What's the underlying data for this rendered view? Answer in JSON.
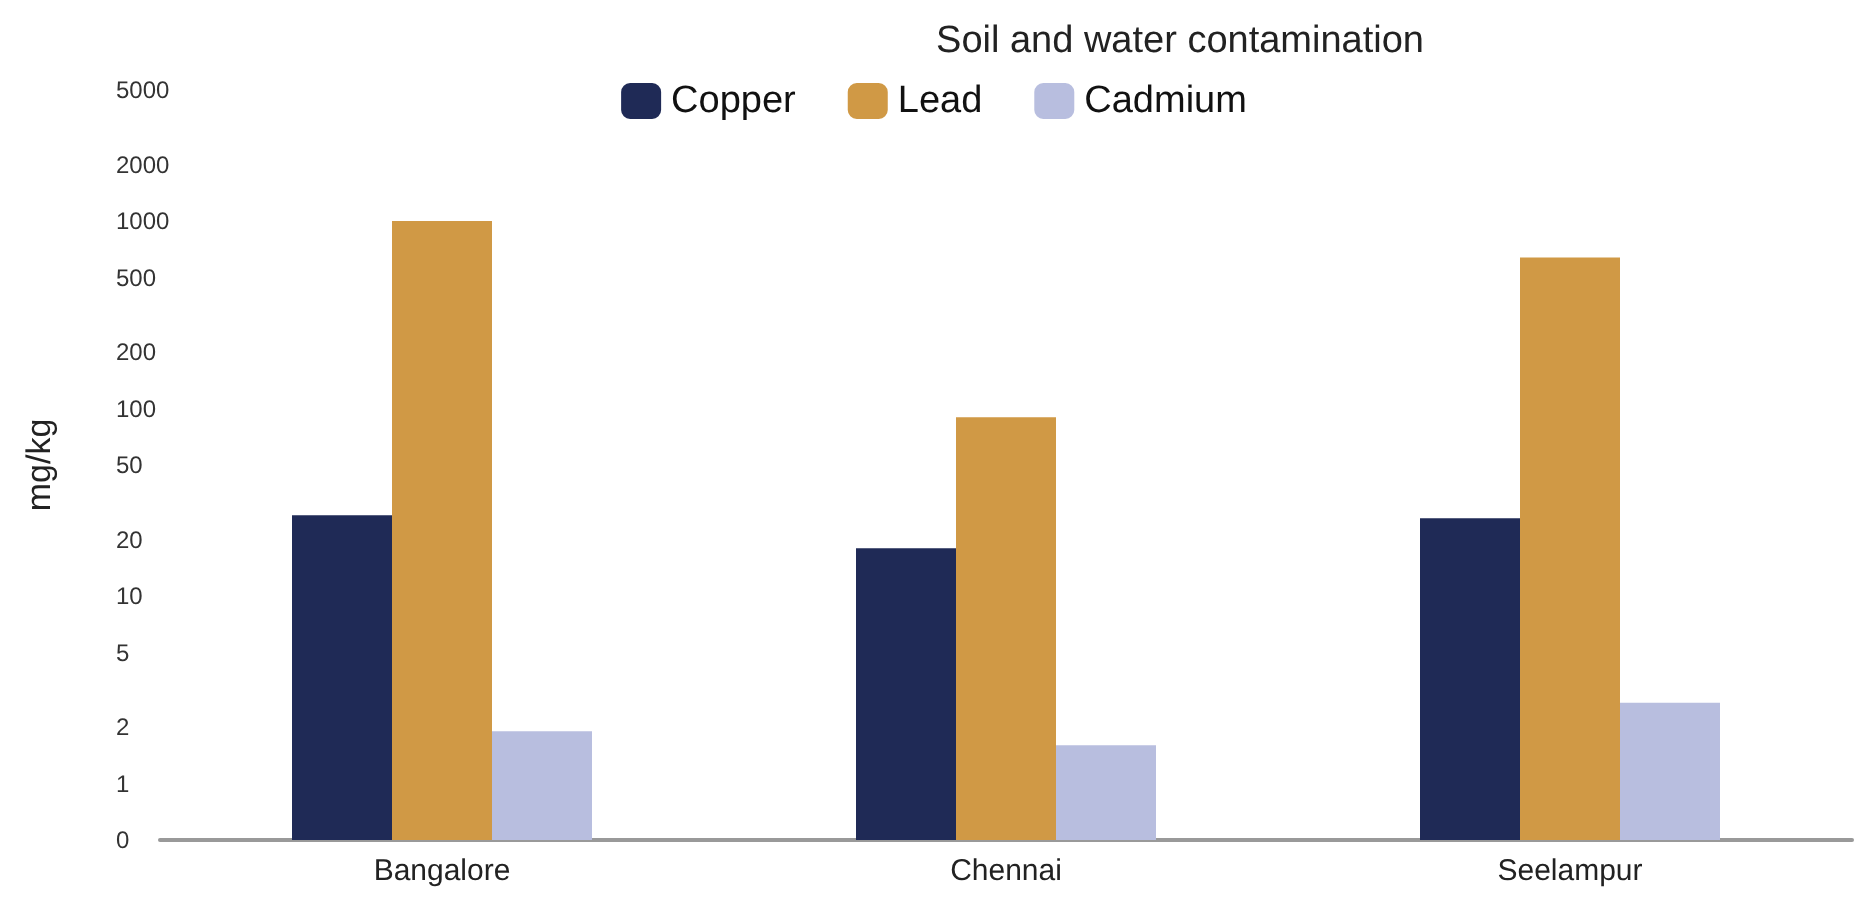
{
  "chart_data": {
    "type": "bar",
    "title": "Soil and water contamination",
    "ylabel": "mg/kg",
    "categories": [
      "Bangalore",
      "Chennai",
      "Seelampur"
    ],
    "series": [
      {
        "name": "Copper",
        "color": "#1f2a56",
        "values": [
          27,
          18,
          26
        ]
      },
      {
        "name": "Lead",
        "color": "#d09945",
        "values": [
          1000,
          90,
          640
        ]
      },
      {
        "name": "Cadmium",
        "color": "#b8bedf",
        "values": [
          1.9,
          1.6,
          2.7
        ]
      }
    ],
    "log": true,
    "ylim": [
      0.5,
      5000
    ],
    "yticks": [
      {
        "value": 0.5,
        "label": "0"
      },
      1,
      2,
      5,
      10,
      20,
      50,
      100,
      200,
      500,
      1000,
      2000,
      5000
    ],
    "grid": false,
    "legend": "top"
  }
}
